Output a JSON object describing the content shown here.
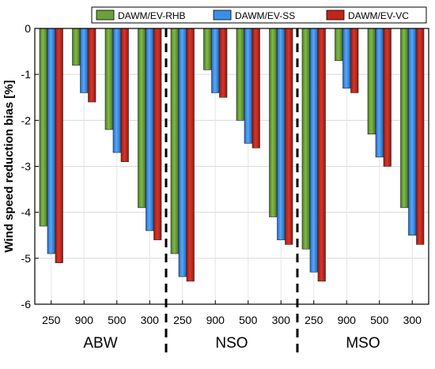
{
  "chart_data": {
    "type": "bar",
    "ylabel": "Wind speed reduction bias [%]",
    "ylim": [
      -6,
      0
    ],
    "yticks": [
      0,
      -1,
      -2,
      -3,
      -4,
      -5,
      -6
    ],
    "grid": true,
    "legend_position": "top-right",
    "groups": [
      "ABW",
      "NSO",
      "MSO"
    ],
    "categories": [
      "250",
      "900",
      "500",
      "300",
      "250",
      "900",
      "500",
      "300",
      "250",
      "900",
      "500",
      "300"
    ],
    "series": [
      {
        "name": "DAWM/EV-RHB",
        "color": "#6aa13a",
        "values": [
          -4.3,
          -0.8,
          -2.2,
          -3.9,
          -4.9,
          -0.9,
          -2.0,
          -4.1,
          -4.8,
          -0.7,
          -2.3,
          -3.9
        ]
      },
      {
        "name": "DAWM/EV-SS",
        "color": "#3b8ee8",
        "values": [
          -4.9,
          -1.4,
          -2.7,
          -4.4,
          -5.4,
          -1.4,
          -2.5,
          -4.6,
          -5.3,
          -1.3,
          -2.8,
          -4.5
        ]
      },
      {
        "name": "DAWM/EV-VC",
        "color": "#c0251a",
        "values": [
          -5.1,
          -1.6,
          -2.9,
          -4.6,
          -5.5,
          -1.5,
          -2.6,
          -4.7,
          -5.5,
          -1.4,
          -3.0,
          -4.7
        ]
      }
    ]
  }
}
